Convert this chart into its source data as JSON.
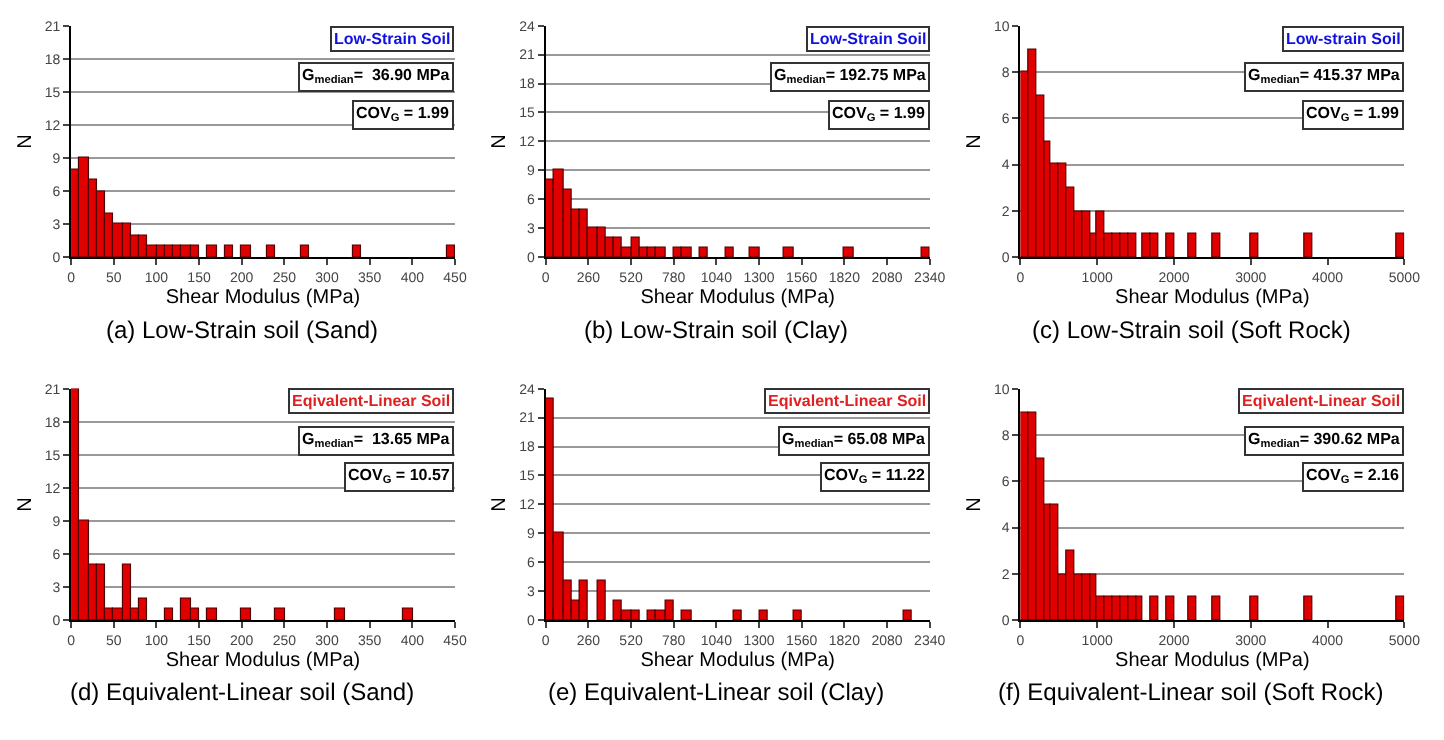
{
  "chart_data": [
    {
      "type": "histogram",
      "title": "(a) Low-Strain soil (Sand)",
      "xlabel": "Shear Modulus (MPa)",
      "ylabel": "N",
      "color": "#e00000",
      "grid": "y",
      "bins": [
        0,
        10,
        20,
        30,
        40,
        50,
        60,
        70,
        80,
        90,
        100,
        110,
        120,
        130,
        140,
        150,
        160,
        170,
        180,
        190,
        200,
        210,
        220,
        230,
        240,
        250,
        260,
        270,
        280,
        290,
        300,
        310,
        320,
        330,
        340,
        350,
        360,
        370,
        380,
        390,
        400,
        410,
        420,
        430,
        440,
        450
      ],
      "values": [
        8,
        9,
        7,
        6,
        4,
        3,
        3,
        2,
        2,
        1,
        1,
        1,
        1,
        1,
        1,
        0,
        1,
        0,
        1,
        0,
        1,
        0,
        0,
        1,
        0,
        0,
        0,
        1,
        0,
        0,
        0,
        0,
        0,
        1,
        0,
        0,
        0,
        0,
        0,
        0,
        0,
        0,
        0,
        0,
        1
      ],
      "xlim": [
        0,
        450
      ],
      "xticks": [
        0,
        50,
        100,
        150,
        200,
        250,
        300,
        350,
        400,
        450
      ],
      "ylim": [
        0,
        21
      ],
      "yticks": [
        0,
        3,
        6,
        9,
        12,
        15,
        18,
        21
      ],
      "annotations": [
        "Low-Strain Soil",
        "G$_{median}$=  36.90 MPa",
        "COV$_{G}$ = 1.99"
      ]
    },
    {
      "type": "histogram",
      "title": "(b) Low-Strain soil (Clay)",
      "xlabel": "Shear Modulus (MPa)",
      "ylabel": "N",
      "color": "#e00000",
      "grid": "y",
      "bins": [
        0,
        52,
        104,
        156,
        208,
        260,
        312,
        364,
        416,
        468,
        520,
        572,
        624,
        676,
        728,
        780,
        832,
        884,
        936,
        988,
        1040,
        1092,
        1144,
        1196,
        1248,
        1300,
        1352,
        1404,
        1456,
        1508,
        1560,
        1612,
        1664,
        1716,
        1768,
        1820,
        1872,
        1924,
        1976,
        2028,
        2080,
        2132,
        2184,
        2236,
        2288,
        2340
      ],
      "values": [
        8,
        9,
        7,
        5,
        5,
        3,
        3,
        2,
        2,
        1,
        2,
        1,
        1,
        1,
        0,
        1,
        1,
        0,
        1,
        0,
        0,
        1,
        0,
        0,
        1,
        0,
        0,
        0,
        1,
        0,
        0,
        0,
        0,
        0,
        0,
        1,
        0,
        0,
        0,
        0,
        0,
        0,
        0,
        0,
        1
      ],
      "xlim": [
        0,
        2340
      ],
      "xticks": [
        0,
        260,
        520,
        780,
        1040,
        1300,
        1560,
        1820,
        2080,
        2340
      ],
      "ylim": [
        0,
        24
      ],
      "yticks": [
        0,
        3,
        6,
        9,
        12,
        15,
        18,
        21,
        24
      ],
      "annotations": [
        "Low-Strain Soil",
        "G$_{median}$= 192.75 MPa",
        "COV$_{G}$ = 1.99"
      ]
    },
    {
      "type": "histogram",
      "title": "(c) Low-Strain soil (Soft Rock)",
      "xlabel": "Shear Modulus (MPa)",
      "ylabel": "N",
      "color": "#e00000",
      "grid": "y",
      "bins": [
        0,
        100,
        200,
        300,
        400,
        500,
        600,
        700,
        800,
        900,
        1000,
        1100,
        1200,
        1300,
        1400,
        1500,
        1600,
        1700,
        1800,
        1900,
        2000,
        2100,
        2200,
        2300,
        2400,
        2500,
        2600,
        2700,
        2800,
        2900,
        3000,
        3100,
        3200,
        3300,
        3400,
        3500,
        3600,
        3700,
        3800,
        3900,
        4000,
        4100,
        4200,
        4300,
        4400,
        4500,
        4600,
        4700,
        4800,
        4900,
        5000
      ],
      "values": [
        8,
        9,
        7,
        5,
        4,
        4,
        3,
        2,
        2,
        1,
        2,
        1,
        1,
        1,
        1,
        0,
        1,
        1,
        0,
        1,
        0,
        0,
        1,
        0,
        0,
        1,
        0,
        0,
        0,
        0,
        1,
        0,
        0,
        0,
        0,
        0,
        0,
        1,
        0,
        0,
        0,
        0,
        0,
        0,
        0,
        0,
        0,
        0,
        0,
        1
      ],
      "xlim": [
        0,
        5000
      ],
      "xticks": [
        0,
        1000,
        2000,
        3000,
        4000,
        5000
      ],
      "ylim": [
        0,
        10
      ],
      "yticks": [
        0,
        2,
        4,
        6,
        8,
        10
      ],
      "annotations": [
        "Low-strain Soil",
        "G$_{median}$= 415.37 MPa",
        "COV$_{G}$ = 1.99"
      ]
    },
    {
      "type": "histogram",
      "title": "(d) Equivalent-Linear soil (Sand)",
      "xlabel": "Shear Modulus (MPa)",
      "ylabel": "N",
      "color": "#e00000",
      "grid": "y",
      "bins": [
        0,
        10,
        20,
        30,
        40,
        50,
        60,
        70,
        80,
        90,
        100,
        110,
        120,
        130,
        140,
        150,
        160,
        170,
        180,
        190,
        200,
        210,
        220,
        230,
        240,
        250,
        260,
        270,
        280,
        290,
        300,
        310,
        320,
        330,
        340,
        350,
        360,
        370,
        380,
        390,
        400,
        410,
        420,
        430,
        440,
        450
      ],
      "values": [
        21,
        9,
        5,
        5,
        1,
        1,
        5,
        1,
        2,
        0,
        0,
        1,
        0,
        2,
        1,
        0,
        1,
        0,
        0,
        0,
        1,
        0,
        0,
        0,
        1,
        0,
        0,
        0,
        0,
        0,
        0,
        1,
        0,
        0,
        0,
        0,
        0,
        0,
        0,
        1,
        0,
        0,
        0,
        0,
        0
      ],
      "xlim": [
        0,
        450
      ],
      "xticks": [
        0,
        50,
        100,
        150,
        200,
        250,
        300,
        350,
        400,
        450
      ],
      "ylim": [
        0,
        21
      ],
      "yticks": [
        0,
        3,
        6,
        9,
        12,
        15,
        18,
        21
      ],
      "annotations": [
        "Eqivalent-Linear Soil",
        "G$_{median}$=  13.65 MPa",
        "COV$_{G}$ = 10.57"
      ]
    },
    {
      "type": "histogram",
      "title": "(e) Equivalent-Linear soil (Clay)",
      "xlabel": "Shear Modulus (MPa)",
      "ylabel": "N",
      "color": "#e00000",
      "grid": "y",
      "bins": [
        0,
        52,
        104,
        156,
        208,
        260,
        312,
        364,
        416,
        468,
        520,
        572,
        624,
        676,
        728,
        780,
        832,
        884,
        936,
        988,
        1040,
        1092,
        1144,
        1196,
        1248,
        1300,
        1352,
        1404,
        1456,
        1508,
        1560,
        1612,
        1664,
        1716,
        1768,
        1820,
        1872,
        1924,
        1976,
        2028,
        2080,
        2132,
        2184,
        2236,
        2288,
        2340
      ],
      "values": [
        23,
        9,
        4,
        2,
        4,
        0,
        4,
        0,
        2,
        1,
        1,
        0,
        1,
        1,
        2,
        0,
        1,
        0,
        0,
        0,
        0,
        0,
        1,
        0,
        0,
        1,
        0,
        0,
        0,
        1,
        0,
        0,
        0,
        0,
        0,
        0,
        0,
        0,
        0,
        0,
        0,
        0,
        1,
        0,
        0
      ],
      "xlim": [
        0,
        2340
      ],
      "xticks": [
        0,
        260,
        520,
        780,
        1040,
        1300,
        1560,
        1820,
        2080,
        2340
      ],
      "ylim": [
        0,
        24
      ],
      "yticks": [
        0,
        3,
        6,
        9,
        12,
        15,
        18,
        21,
        24
      ],
      "annotations": [
        "Eqivalent-Linear Soil",
        "G$_{median}$= 65.08 MPa",
        "COV$_{G}$ = 11.22"
      ]
    },
    {
      "type": "histogram",
      "title": "(f) Equivalent-Linear soil (Soft Rock)",
      "xlabel": "Shear Modulus (MPa)",
      "ylabel": "N",
      "color": "#e00000",
      "grid": "y",
      "bins": [
        0,
        100,
        200,
        300,
        400,
        500,
        600,
        700,
        800,
        900,
        1000,
        1100,
        1200,
        1300,
        1400,
        1500,
        1600,
        1700,
        1800,
        1900,
        2000,
        2100,
        2200,
        2300,
        2400,
        2500,
        2600,
        2700,
        2800,
        2900,
        3000,
        3100,
        3200,
        3300,
        3400,
        3500,
        3600,
        3700,
        3800,
        3900,
        4000,
        4100,
        4200,
        4300,
        4400,
        4500,
        4600,
        4700,
        4800,
        4900,
        5000
      ],
      "values": [
        9,
        9,
        7,
        5,
        5,
        2,
        3,
        2,
        2,
        2,
        1,
        1,
        1,
        1,
        1,
        1,
        0,
        1,
        0,
        1,
        0,
        0,
        1,
        0,
        0,
        1,
        0,
        0,
        0,
        0,
        1,
        0,
        0,
        0,
        0,
        0,
        0,
        1,
        0,
        0,
        0,
        0,
        0,
        0,
        0,
        0,
        0,
        0,
        0,
        1
      ],
      "xlim": [
        0,
        5000
      ],
      "xticks": [
        0,
        1000,
        2000,
        3000,
        4000,
        5000
      ],
      "ylim": [
        0,
        10
      ],
      "yticks": [
        0,
        2,
        4,
        6,
        8,
        10
      ],
      "annotations": [
        "Eqivalent-Linear Soil",
        "G$_{median}$= 390.62 MPa",
        "COV$_{G}$ = 2.16"
      ]
    }
  ]
}
